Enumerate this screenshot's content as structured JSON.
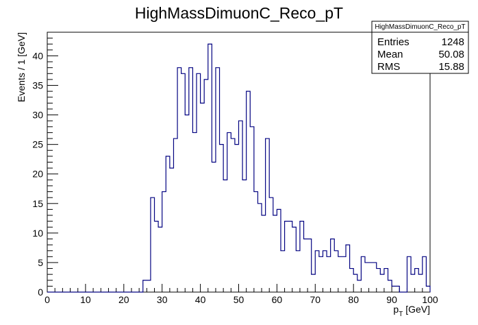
{
  "chart_data": {
    "type": "histogram",
    "title": "HighMassDimuonC_Reco_pT",
    "xlabel_main": "p",
    "xlabel_sub": "T",
    "xlabel_unit": " [GeV]",
    "ylabel": "Events / 1 [GeV]",
    "xlim": [
      0,
      100
    ],
    "ylim": [
      0,
      44
    ],
    "x_ticks": [
      0,
      10,
      20,
      30,
      40,
      50,
      60,
      70,
      80,
      90,
      100
    ],
    "y_ticks": [
      0,
      5,
      10,
      15,
      20,
      25,
      30,
      35,
      40
    ],
    "bin_width": 1,
    "line_color": "#000080",
    "values": [
      0,
      0,
      0,
      0,
      0,
      0,
      0,
      0,
      0,
      0,
      0,
      0,
      0,
      0,
      0,
      0,
      0,
      0,
      0,
      0,
      0,
      0,
      0,
      0,
      0,
      2,
      2,
      16,
      12,
      11,
      17,
      23,
      21,
      26,
      38,
      37,
      30,
      38,
      27,
      37,
      32,
      36,
      42,
      22,
      38,
      25,
      19,
      27,
      26,
      25,
      29,
      19,
      34,
      28,
      17,
      15,
      13,
      26,
      16,
      13,
      14,
      7,
      12,
      12,
      11,
      7,
      12,
      9,
      9,
      3,
      7,
      6,
      7,
      6,
      9,
      7,
      6,
      6,
      8,
      4,
      3,
      2,
      6,
      5,
      5,
      5,
      4,
      3,
      4,
      2,
      1,
      1,
      0,
      0,
      6,
      3,
      4,
      3,
      6,
      1
    ],
    "stats": {
      "title": "HighMassDimuonC_Reco_pT",
      "rows": [
        {
          "label": "Entries",
          "value": "1248"
        },
        {
          "label": "Mean",
          "value": "50.08"
        },
        {
          "label": "RMS",
          "value": "15.88"
        }
      ]
    }
  }
}
